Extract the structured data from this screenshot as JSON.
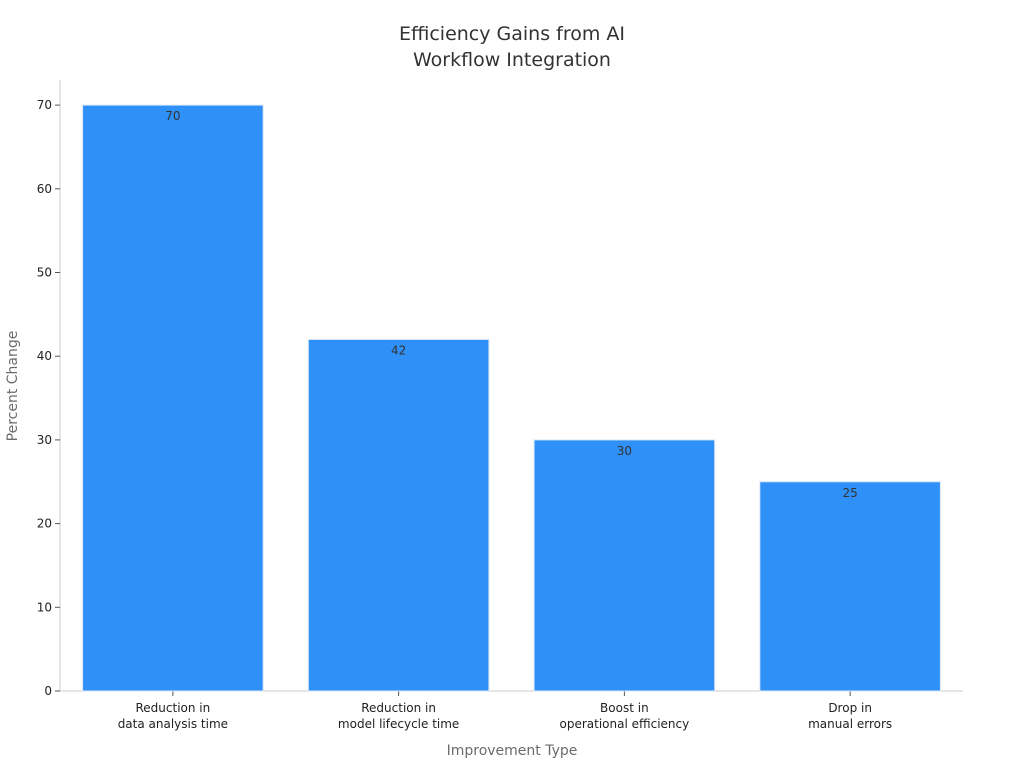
{
  "chart_data": {
    "type": "bar",
    "title_lines": [
      "Efficiency Gains from AI",
      "Workflow Integration"
    ],
    "xlabel": "Improvement Type",
    "ylabel": "Percent Change",
    "categories": [
      [
        "Reduction in",
        "data analysis time"
      ],
      [
        "Reduction in",
        "model lifecycle time"
      ],
      [
        "Boost in",
        "operational efficiency"
      ],
      [
        "Drop in",
        "manual errors"
      ]
    ],
    "values": [
      70,
      42,
      30,
      25
    ],
    "data_labels": [
      "70",
      "42",
      "30",
      "25"
    ],
    "ylim": [
      0,
      73
    ],
    "yticks": [
      0,
      10,
      20,
      30,
      40,
      50,
      60,
      70
    ],
    "grid": false,
    "bar_color": "#2f91f7",
    "bar_edge_color": "#d9e7f7"
  }
}
